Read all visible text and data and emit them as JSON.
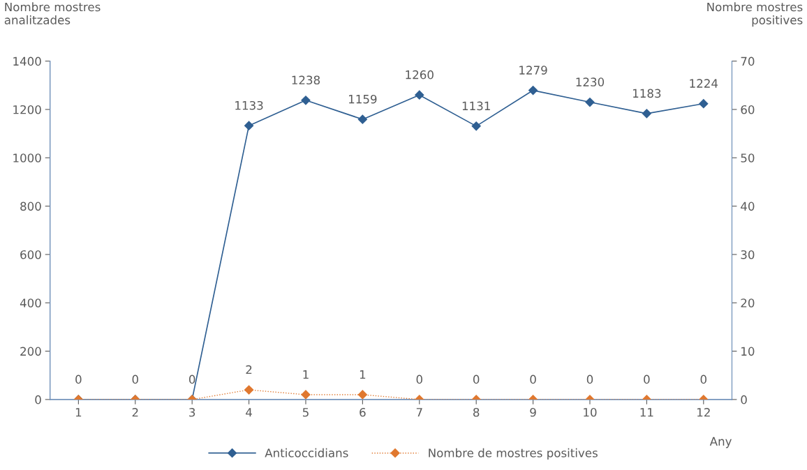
{
  "chart_data": {
    "type": "line",
    "categories": [
      "1",
      "2",
      "3",
      "4",
      "5",
      "6",
      "7",
      "8",
      "9",
      "10",
      "11",
      "12"
    ],
    "xlabel": "Any",
    "ylabel": "Nombre mostres\nanalitzades",
    "y2label": "Nombre mostres\n positives",
    "ylim": [
      0,
      1400
    ],
    "yticks": [
      0,
      200,
      400,
      600,
      800,
      1000,
      1200,
      1400
    ],
    "y2lim": [
      0,
      70
    ],
    "y2ticks": [
      0,
      10,
      20,
      30,
      40,
      50,
      60,
      70
    ],
    "grid": false,
    "legend": "bottom",
    "marker": "diamond",
    "series": [
      {
        "name": "Anticoccidians",
        "color": "#2f5f92",
        "line_style": "solid",
        "values": [
          0,
          0,
          0,
          1133,
          1238,
          1159,
          1260,
          1131,
          1279,
          1230,
          1183,
          1224
        ],
        "value_labels": [
          "0",
          "0",
          "0",
          "1133",
          "1238",
          "1159",
          "1260",
          "1131",
          "1279",
          "1230",
          "1183",
          "1224"
        ]
      },
      {
        "name": "Nombre de mostres positives",
        "color": "#e0782f",
        "axis": "y2",
        "line_style": "dotted",
        "values": [
          0,
          0,
          0,
          2,
          1,
          1,
          0,
          0,
          0,
          0,
          0,
          0
        ],
        "value_labels": [
          null,
          null,
          null,
          "2",
          "1",
          "1",
          "0",
          "0",
          "0",
          "0",
          "0",
          "0"
        ]
      }
    ]
  }
}
